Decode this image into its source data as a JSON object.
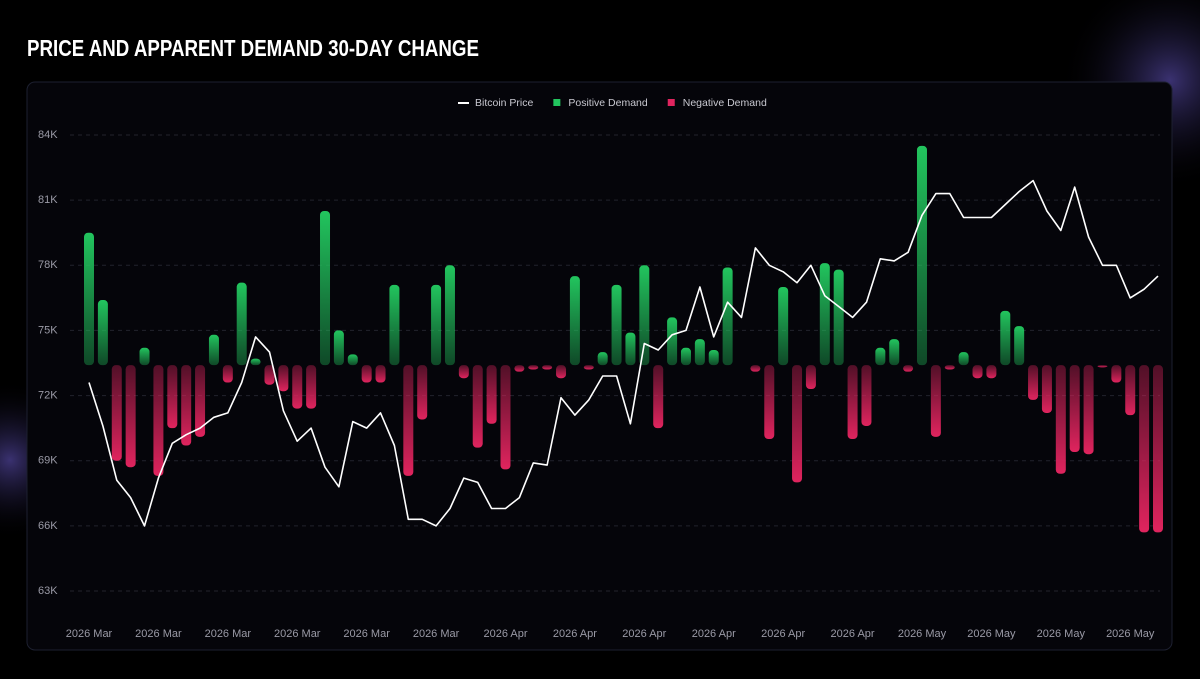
{
  "chart_data": {
    "type": "bar-line",
    "title": "PRICE AND APPARENT DEMAND 30-DAY CHANGE",
    "categories": [
      "2026 Mar",
      null,
      null,
      null,
      null,
      "2026 Mar",
      null,
      null,
      null,
      null,
      "2026 Mar",
      null,
      null,
      null,
      null,
      "2026 Mar",
      null,
      null,
      null,
      null,
      "2026 Mar",
      null,
      null,
      null,
      null,
      "2026 Mar",
      null,
      null,
      null,
      null,
      "2026 Apr",
      null,
      null,
      null,
      null,
      "2026 Apr",
      null,
      null,
      null,
      null,
      "2026 Apr",
      null,
      null,
      null,
      null,
      "2026 Apr",
      null,
      null,
      null,
      null,
      "2026 Apr",
      null,
      null,
      null,
      null,
      "2026 Apr",
      null,
      null,
      null,
      null,
      "2026 May",
      null,
      null,
      null,
      null,
      "2026 May",
      null,
      null,
      null,
      null,
      "2026 May",
      null,
      null,
      null,
      null,
      "2026 May",
      null,
      null
    ],
    "series": [
      {
        "name": "Bitcoin Price",
        "type": "line",
        "color": "#ffffff",
        "values": [
          72.6,
          70.6,
          68.1,
          67.3,
          66.0,
          68.2,
          69.8,
          70.2,
          70.5,
          71.0,
          71.2,
          72.6,
          74.7,
          74.0,
          71.3,
          69.9,
          70.5,
          68.7,
          67.8,
          70.8,
          70.5,
          71.2,
          69.7,
          66.3,
          66.3,
          66.0,
          66.8,
          68.2,
          68.0,
          66.8,
          66.8,
          67.3,
          68.9,
          68.8,
          71.9,
          71.1,
          71.8,
          72.9,
          72.9,
          70.7,
          74.4,
          74.1,
          74.8,
          75.0,
          77.0,
          74.7,
          76.3,
          75.6,
          78.8,
          78.0,
          77.7,
          77.2,
          78.0,
          76.6,
          76.1,
          75.6,
          76.3,
          78.3,
          78.2,
          78.6,
          80.3,
          81.3,
          81.3,
          80.2,
          80.2,
          80.2,
          80.8,
          81.4,
          81.9,
          80.5,
          79.6,
          81.6,
          79.3,
          78.0,
          78.0,
          76.5,
          76.9,
          77.5
        ]
      },
      {
        "name": "Positive Demand",
        "type": "bar",
        "axis": "y2",
        "color": "#22c55e",
        "values": [
          6.1,
          3.0,
          null,
          null,
          0.8,
          null,
          null,
          null,
          null,
          1.4,
          null,
          3.8,
          0.3,
          null,
          null,
          null,
          null,
          7.1,
          1.6,
          0.5,
          null,
          null,
          3.7,
          null,
          null,
          3.7,
          4.6,
          null,
          null,
          null,
          null,
          null,
          null,
          null,
          null,
          4.1,
          null,
          0.6,
          3.7,
          1.5,
          4.6,
          null,
          2.2,
          0.8,
          1.2,
          0.7,
          4.5,
          null,
          null,
          null,
          3.6,
          null,
          null,
          4.7,
          4.4,
          null,
          null,
          0.8,
          1.2,
          null,
          10.1,
          null,
          null,
          0.6,
          null,
          null,
          2.5,
          1.8,
          null,
          null,
          null,
          null,
          null,
          null,
          null,
          null,
          null,
          null
        ]
      },
      {
        "name": "Negative Demand",
        "type": "bar",
        "axis": "y2",
        "color": "#e0245e",
        "values": [
          null,
          null,
          -4.4,
          -4.7,
          null,
          -5.1,
          -2.9,
          -3.7,
          -3.3,
          null,
          -0.8,
          null,
          null,
          -0.9,
          -1.2,
          -2.0,
          -2.0,
          null,
          null,
          null,
          -0.8,
          -0.8,
          null,
          -5.1,
          -2.5,
          null,
          null,
          -0.6,
          -3.8,
          -2.7,
          -4.8,
          -0.3,
          -0.2,
          -0.2,
          -0.6,
          null,
          -0.2,
          null,
          null,
          null,
          null,
          -2.9,
          null,
          null,
          null,
          null,
          null,
          null,
          -0.3,
          -3.4,
          null,
          -5.4,
          -1.1,
          null,
          null,
          -3.4,
          -2.8,
          null,
          null,
          -0.3,
          null,
          -3.3,
          -0.2,
          null,
          -0.6,
          -0.6,
          null,
          null,
          -1.6,
          -2.2,
          -5.0,
          -4.0,
          -4.1,
          -0.1,
          -0.8,
          -2.3,
          -7.7,
          -7.7
        ]
      }
    ],
    "ylim": [
      63,
      84
    ],
    "yticks": [
      {
        "value": 63,
        "label": "63K"
      },
      {
        "value": 66,
        "label": "66K"
      },
      {
        "value": 69,
        "label": "69K"
      },
      {
        "value": 72,
        "label": "72K"
      },
      {
        "value": 75,
        "label": "75K"
      },
      {
        "value": 78,
        "label": "78K"
      },
      {
        "value": 81,
        "label": "81K"
      },
      {
        "value": 84,
        "label": "84K"
      }
    ],
    "y2lim": [
      -10.4,
      10.6
    ],
    "grid": true,
    "legend": "top"
  }
}
